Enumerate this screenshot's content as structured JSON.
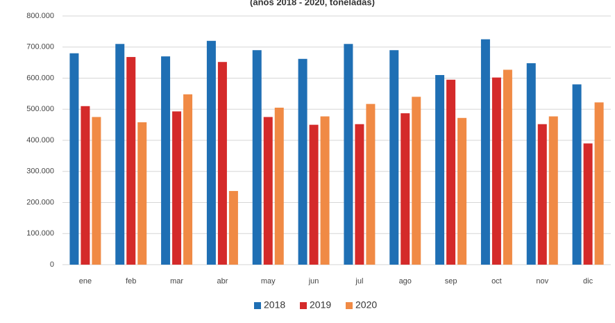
{
  "chart_data": {
    "type": "bar",
    "subtitle": "(años 2018 - 2020, toneladas)",
    "categories": [
      "ene",
      "feb",
      "mar",
      "abr",
      "may",
      "jun",
      "jul",
      "ago",
      "sep",
      "oct",
      "nov",
      "dic"
    ],
    "series": [
      {
        "name": "2018",
        "color": "#1f6fb4",
        "values": [
          680000,
          710000,
          670000,
          720000,
          690000,
          662000,
          710000,
          690000,
          610000,
          725000,
          648000,
          580000
        ]
      },
      {
        "name": "2019",
        "color": "#d42a2a",
        "values": [
          510000,
          668000,
          493000,
          652000,
          475000,
          450000,
          452000,
          487000,
          595000,
          602000,
          452000,
          390000
        ]
      },
      {
        "name": "2020",
        "color": "#f08a45",
        "values": [
          475000,
          458000,
          548000,
          237000,
          505000,
          477000,
          517000,
          540000,
          472000,
          627000,
          477000,
          522000
        ]
      }
    ],
    "ylim": [
      0,
      800000
    ],
    "yticks": [
      0,
      {
        "value": 100000,
        "label": "100.000"
      },
      {
        "value": 200000,
        "label": "200.000"
      },
      {
        "value": 300000,
        "label": "300.000"
      },
      {
        "value": 400000,
        "label": "400.000"
      },
      {
        "value": 500000,
        "label": "500.000"
      },
      {
        "value": 600000,
        "label": "600.000"
      },
      {
        "value": 700000,
        "label": "700.000"
      },
      {
        "value": 800000,
        "label": "800.000"
      }
    ],
    "grid": true,
    "legend": "bottom"
  }
}
